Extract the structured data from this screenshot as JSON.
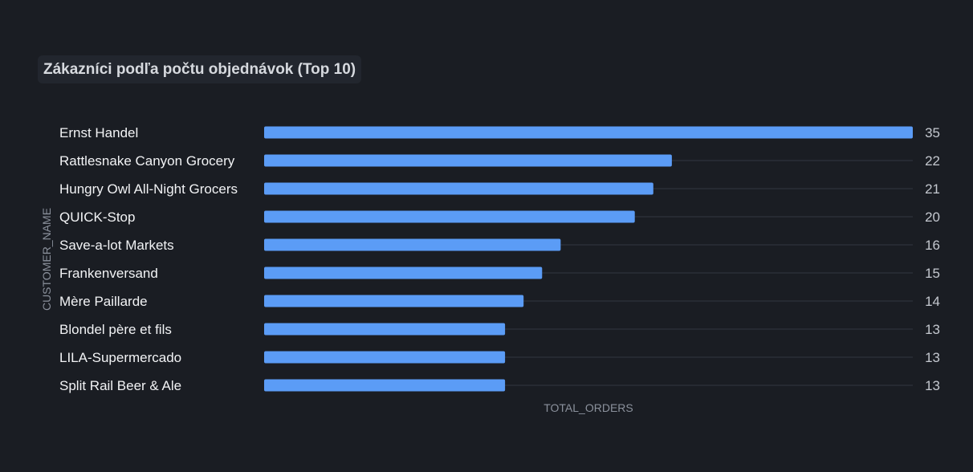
{
  "chart_data": {
    "type": "bar",
    "orientation": "horizontal",
    "title": "Zákazníci podľa počtu objednávok (Top 10)",
    "xlabel": "TOTAL_ORDERS",
    "ylabel": "CUSTOMER_NAME",
    "categories": [
      "Ernst Handel",
      "Rattlesnake Canyon Grocery",
      "Hungry Owl All-Night Grocers",
      "QUICK-Stop",
      "Save-a-lot Markets",
      "Frankenversand",
      "Mère Paillarde",
      "Blondel père et fils",
      "LILA-Supermercado",
      "Split Rail Beer & Ale"
    ],
    "values": [
      35,
      22,
      21,
      20,
      16,
      15,
      14,
      13,
      13,
      13
    ],
    "xlim": [
      0,
      35
    ],
    "grid": true,
    "legend": "none",
    "colors": {
      "bar": "#5b9cf6",
      "background": "#1a1d23",
      "track": "#262a32"
    }
  }
}
